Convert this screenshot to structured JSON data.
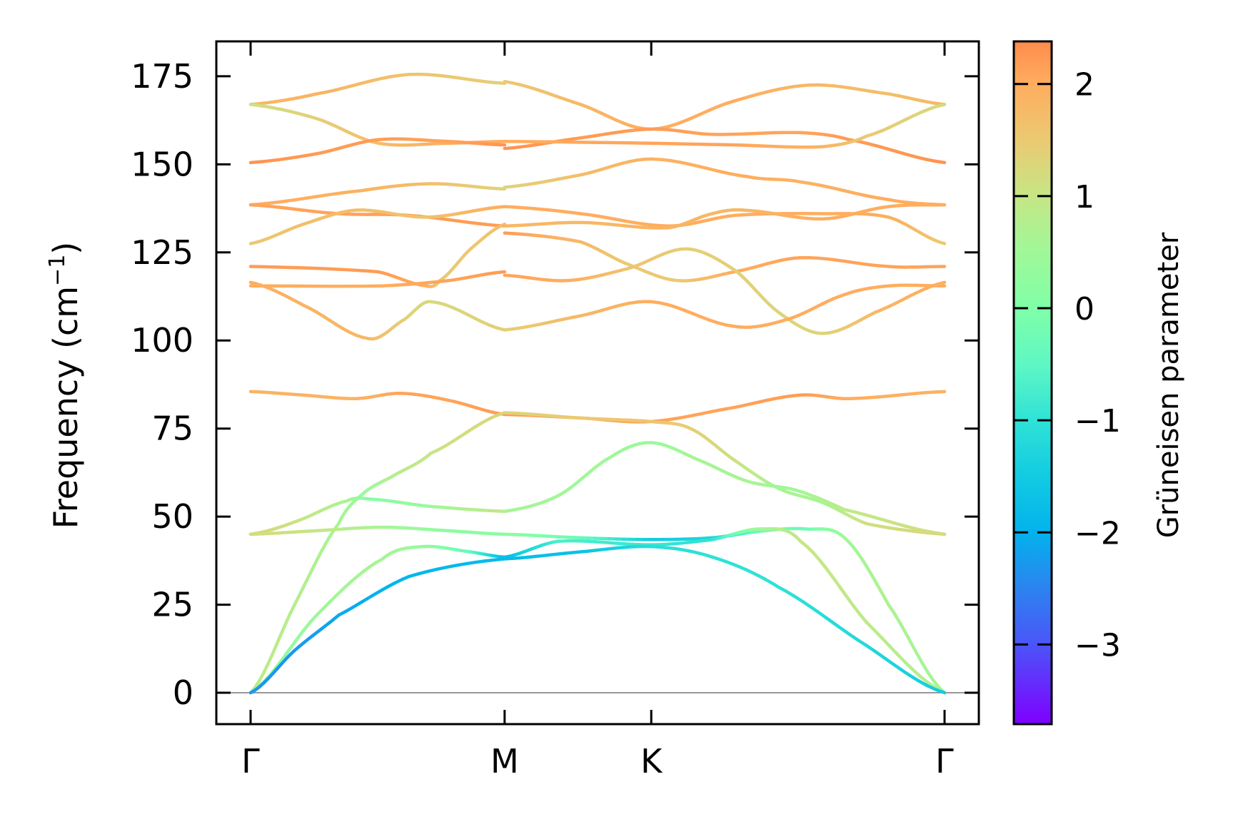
{
  "chart_data": {
    "type": "line",
    "title": "",
    "xlabel": "",
    "ylabel": "Frequency (cm",
    "ylabel_sup": "−1",
    "ylabel_end": ")",
    "ylim": [
      -8.9,
      184.9
    ],
    "yticks": [
      0,
      25,
      50,
      75,
      100,
      125,
      150,
      175
    ],
    "xlim": [
      -0.086,
      1.66
    ],
    "xticks": [
      {
        "x": 0,
        "label": "Γ"
      },
      {
        "x": 0.5774,
        "label": "M"
      },
      {
        "x": 0.9107,
        "label": "K"
      },
      {
        "x": 1.5774,
        "label": "Γ"
      }
    ],
    "zero_line": 0,
    "zero_line_color": "#999999",
    "colorbar": {
      "label": "Grüneisen parameter",
      "clim": [
        -3.71,
        2.38
      ],
      "ticks": [
        {
          "v": 2,
          "label": "2"
        },
        {
          "v": 1,
          "label": "1"
        },
        {
          "v": 0,
          "label": "0"
        },
        {
          "v": -1,
          "label": "−1"
        },
        {
          "v": -2,
          "label": "−2"
        },
        {
          "v": -3,
          "label": "−3"
        }
      ],
      "colormap": [
        [
          -3.71,
          "#7f00ff"
        ],
        [
          -3.0,
          "#4b55f8"
        ],
        [
          -2.5,
          "#2c83f0"
        ],
        [
          -2.0,
          "#03b2ec"
        ],
        [
          -1.5,
          "#12cbe2"
        ],
        [
          -1.0,
          "#2fe2d6"
        ],
        [
          -0.5,
          "#5ff7c4"
        ],
        [
          0.0,
          "#80ffa8"
        ],
        [
          0.5,
          "#a0f898"
        ],
        [
          1.0,
          "#c6e685"
        ],
        [
          1.5,
          "#ebc972"
        ],
        [
          2.0,
          "#ffad5e"
        ],
        [
          2.38,
          "#ff8c4d"
        ]
      ]
    },
    "series": [
      {
        "segment": "Γ-M",
        "points": [
          [
            0,
            167,
            1.8
          ],
          [
            0.15,
            170,
            1.9
          ],
          [
            0.36,
            175.5,
            1.6
          ],
          [
            0.5774,
            173,
            1.4
          ]
        ]
      },
      {
        "segment": "Γ-M",
        "points": [
          [
            0,
            167,
            1.1
          ],
          [
            0.15,
            163,
            1.4
          ],
          [
            0.29,
            156,
            1.7
          ],
          [
            0.45,
            156,
            2.0
          ],
          [
            0.5774,
            156.5,
            2.0
          ]
        ]
      },
      {
        "segment": "Γ-M",
        "points": [
          [
            0,
            150.5,
            2.3
          ],
          [
            0.15,
            153,
            2.2
          ],
          [
            0.29,
            157,
            2.2
          ],
          [
            0.45,
            156.5,
            2.1
          ],
          [
            0.5774,
            155.5,
            2.3
          ]
        ]
      },
      {
        "segment": "Γ-M",
        "points": [
          [
            0,
            138.5,
            2.0
          ],
          [
            0.25,
            142.5,
            1.9
          ],
          [
            0.41,
            144.5,
            1.7
          ],
          [
            0.5774,
            143,
            1.3
          ]
        ]
      },
      {
        "segment": "Γ-M",
        "points": [
          [
            0,
            138.5,
            2.1
          ],
          [
            0.2,
            136,
            2.1
          ],
          [
            0.36,
            135.5,
            2.2
          ],
          [
            0.5774,
            132.5,
            2.2
          ]
        ]
      },
      {
        "segment": "Γ-M",
        "points": [
          [
            0,
            127.5,
            1.5
          ],
          [
            0.12,
            133,
            1.7
          ],
          [
            0.24,
            137,
            1.7
          ],
          [
            0.4,
            135,
            1.6
          ],
          [
            0.5774,
            138,
            2.0
          ]
        ]
      },
      {
        "segment": "Γ-M",
        "points": [
          [
            0,
            121,
            2.2
          ],
          [
            0.29,
            119.5,
            2.2
          ],
          [
            0.4,
            115.5,
            2.0
          ],
          [
            0.43,
            117,
            1.5
          ],
          [
            0.5,
            126,
            1.5
          ],
          [
            0.5774,
            133,
            1.7
          ]
        ]
      },
      {
        "segment": "Γ-M",
        "points": [
          [
            0,
            115.5,
            2.0
          ],
          [
            0.3,
            115.5,
            2.0
          ],
          [
            0.45,
            117,
            2.1
          ],
          [
            0.5774,
            119.5,
            2.2
          ]
        ]
      },
      {
        "segment": "Γ-M",
        "points": [
          [
            0,
            116.5,
            2.0
          ],
          [
            0.12,
            110,
            1.9
          ],
          [
            0.27,
            100.5,
            1.8
          ],
          [
            0.35,
            106,
            1.4
          ],
          [
            0.41,
            111,
            1.2
          ],
          [
            0.5774,
            103,
            1.4
          ]
        ]
      },
      {
        "segment": "Γ-M",
        "points": [
          [
            0,
            85.5,
            1.9
          ],
          [
            0.12,
            84.5,
            1.9
          ],
          [
            0.24,
            83.5,
            1.9
          ],
          [
            0.34,
            85,
            2.1
          ],
          [
            0.45,
            83,
            2.1
          ],
          [
            0.5774,
            79,
            2.2
          ]
        ]
      },
      {
        "segment": "Γ-M",
        "points": [
          [
            0,
            0,
            0.9
          ],
          [
            0.1,
            25,
            0.8
          ],
          [
            0.2,
            48,
            0.6
          ],
          [
            0.26,
            57,
            0.4
          ],
          [
            0.33,
            62,
            0.8
          ],
          [
            0.41,
            68,
            1.0
          ],
          [
            0.5774,
            79.5,
            1.3
          ]
        ]
      },
      {
        "segment": "Γ-M",
        "points": [
          [
            0,
            45,
            1.3
          ],
          [
            0.1,
            48.5,
            1.1
          ],
          [
            0.22,
            54.5,
            0.6
          ],
          [
            0.27,
            55,
            0.1
          ],
          [
            0.4,
            53,
            0.4
          ],
          [
            0.5774,
            51.5,
            1.0
          ]
        ]
      },
      {
        "segment": "Γ-M",
        "points": [
          [
            0,
            45,
            1.2
          ],
          [
            0.15,
            46,
            1.0
          ],
          [
            0.3,
            47,
            0.6
          ],
          [
            0.45,
            46,
            0.2
          ],
          [
            0.5774,
            45,
            0.2
          ]
        ]
      },
      {
        "segment": "Γ-M",
        "points": [
          [
            0,
            0,
            0
          ],
          [
            0.15,
            22,
            0.5
          ],
          [
            0.3,
            38,
            0.6
          ],
          [
            0.39,
            41.5,
            0.3
          ],
          [
            0.5,
            40,
            -0.4
          ],
          [
            0.5774,
            38.5,
            -1.8
          ]
        ]
      },
      {
        "segment": "Γ-M",
        "points": [
          [
            0,
            0,
            -2.3
          ],
          [
            0.1,
            12,
            -2.3
          ],
          [
            0.2,
            22,
            -2.1
          ],
          [
            0.36,
            33,
            -1.9
          ],
          [
            0.5774,
            38,
            -1.8
          ]
        ]
      },
      {
        "segment": "M-K-Γ",
        "points": [
          [
            0.5774,
            173.5,
            1.5
          ],
          [
            0.75,
            167,
            1.8
          ],
          [
            0.9107,
            160,
            2.0
          ],
          [
            1.1,
            168,
            2.0
          ],
          [
            1.271,
            172.5,
            1.8
          ],
          [
            1.45,
            170,
            1.7
          ],
          [
            1.5774,
            167,
            1.8
          ]
        ]
      },
      {
        "segment": "M-K-Γ",
        "points": [
          [
            0.5774,
            154.5,
            2.3
          ],
          [
            0.75,
            157.5,
            2.2
          ],
          [
            0.9107,
            160,
            2.2
          ],
          [
            1.05,
            158.5,
            2.1
          ],
          [
            1.25,
            159,
            2.1
          ],
          [
            1.36,
            157,
            2.2
          ],
          [
            1.5774,
            150.5,
            2.3
          ]
        ]
      },
      {
        "segment": "M-K-Γ",
        "points": [
          [
            0.5774,
            156.5,
            2.0
          ],
          [
            0.9107,
            156,
            2.1
          ],
          [
            1.1,
            155.5,
            2.1
          ],
          [
            1.3,
            155,
            1.9
          ],
          [
            1.4,
            158,
            1.5
          ],
          [
            1.5774,
            167,
            1.2
          ]
        ]
      },
      {
        "segment": "M-K-Γ",
        "points": [
          [
            0.5774,
            143.5,
            1.3
          ],
          [
            0.75,
            147,
            1.7
          ],
          [
            0.9107,
            151.5,
            1.9
          ],
          [
            1.13,
            146.5,
            2.0
          ],
          [
            1.25,
            145,
            1.9
          ],
          [
            1.45,
            140,
            2.0
          ],
          [
            1.5774,
            138.5,
            2.0
          ]
        ]
      },
      {
        "segment": "M-K-Γ",
        "points": [
          [
            0.5774,
            138,
            2.0
          ],
          [
            0.75,
            136,
            2.0
          ],
          [
            0.95,
            132.5,
            2.0
          ],
          [
            1.1,
            135.5,
            2.0
          ],
          [
            1.3,
            136,
            2.0
          ],
          [
            1.45,
            135,
            2.0
          ],
          [
            1.5774,
            127.5,
            1.5
          ]
        ]
      },
      {
        "segment": "M-K-Γ",
        "points": [
          [
            0.5774,
            132.5,
            1.8
          ],
          [
            0.75,
            133.5,
            1.8
          ],
          [
            0.95,
            132,
            1.9
          ],
          [
            1.05,
            136,
            1.8
          ],
          [
            1.12,
            137,
            1.8
          ],
          [
            1.3,
            134.5,
            2.0
          ],
          [
            1.45,
            138,
            2.0
          ],
          [
            1.5774,
            138.5,
            2.0
          ]
        ]
      },
      {
        "segment": "M-K-Γ",
        "points": [
          [
            0.5774,
            130.5,
            2.2
          ],
          [
            0.75,
            128,
            1.8
          ],
          [
            0.85,
            122,
            1.5
          ],
          [
            0.97,
            117,
            1.5
          ],
          [
            1.1,
            119.5,
            2.0
          ],
          [
            1.25,
            123.5,
            2.1
          ],
          [
            1.45,
            121,
            2.1
          ],
          [
            1.5774,
            121,
            2.1
          ]
        ]
      },
      {
        "segment": "M-K-Γ",
        "points": [
          [
            0.5774,
            118.5,
            2.1
          ],
          [
            0.72,
            117,
            2.0
          ],
          [
            0.86,
            120.5,
            1.6
          ],
          [
            0.99,
            126,
            1.4
          ],
          [
            1.1,
            120,
            1.4
          ],
          [
            1.2,
            108,
            1.3
          ],
          [
            1.3,
            102,
            1.3
          ],
          [
            1.42,
            108,
            1.8
          ],
          [
            1.5774,
            116.5,
            2.0
          ]
        ]
      },
      {
        "segment": "M-K-Γ",
        "points": [
          [
            0.5774,
            103,
            1.4
          ],
          [
            0.75,
            107,
            1.8
          ],
          [
            0.9107,
            111,
            2.0
          ],
          [
            1.1,
            104,
            2.0
          ],
          [
            1.22,
            106,
            2.0
          ],
          [
            1.35,
            113,
            2.0
          ],
          [
            1.45,
            115.5,
            2.0
          ],
          [
            1.5774,
            115.5,
            2.0
          ]
        ]
      },
      {
        "segment": "M-K-Γ",
        "points": [
          [
            0.5774,
            79,
            2.2
          ],
          [
            0.75,
            78,
            2.1
          ],
          [
            0.9107,
            77,
            2.1
          ],
          [
            1.1,
            81,
            2.1
          ],
          [
            1.25,
            84.5,
            2.2
          ],
          [
            1.36,
            83.5,
            2.0
          ],
          [
            1.5774,
            85.5,
            1.9
          ]
        ]
      },
      {
        "segment": "M-K-Γ",
        "points": [
          [
            0.5774,
            79.5,
            1.3
          ],
          [
            0.75,
            78,
            1.5
          ],
          [
            0.9107,
            77,
            1.6
          ],
          [
            1.0,
            75,
            1.4
          ],
          [
            1.1,
            66,
            1.1
          ],
          [
            1.2,
            58,
            0.6
          ],
          [
            1.3,
            54,
            0.6
          ],
          [
            1.4,
            48,
            1.1
          ],
          [
            1.5774,
            45,
            1.3
          ]
        ]
      },
      {
        "segment": "M-K-Γ",
        "points": [
          [
            0.5774,
            51.5,
            0.6
          ],
          [
            0.7,
            56,
            0.5
          ],
          [
            0.82,
            67,
            0.5
          ],
          [
            0.9107,
            71,
            0.4
          ],
          [
            1.02,
            66,
            0.6
          ],
          [
            1.13,
            60,
            0.6
          ],
          [
            1.24,
            57.5,
            0.5
          ],
          [
            1.35,
            52,
            0.9
          ],
          [
            1.5774,
            45,
            1.2
          ]
        ]
      },
      {
        "segment": "M-K-Γ",
        "points": [
          [
            0.5774,
            45,
            0.2
          ],
          [
            0.75,
            44,
            -0.3
          ],
          [
            0.9107,
            43.5,
            -1.5
          ],
          [
            1.05,
            44,
            -1.3
          ],
          [
            1.17,
            46,
            -0.2
          ],
          [
            1.26,
            46.5,
            -0.3
          ],
          [
            1.35,
            44,
            0.5
          ],
          [
            1.45,
            25,
            0.7
          ],
          [
            1.5774,
            0,
            0.5
          ]
        ]
      },
      {
        "segment": "M-K-Γ",
        "points": [
          [
            0.5774,
            38.5,
            -1.8
          ],
          [
            0.7,
            43,
            -0.7
          ],
          [
            0.9107,
            42,
            -0.9
          ],
          [
            1.05,
            43.5,
            -1.0
          ],
          [
            1.16,
            46.5,
            0.6
          ],
          [
            1.25,
            43,
            1.0
          ],
          [
            1.4,
            20,
            0.9
          ],
          [
            1.5774,
            0,
            0.7
          ]
        ]
      },
      {
        "segment": "M-K-Γ",
        "points": [
          [
            0.5774,
            38,
            -1.8
          ],
          [
            0.75,
            40,
            -1.7
          ],
          [
            0.9107,
            41.5,
            -1.1
          ],
          [
            1.05,
            38.5,
            -1.0
          ],
          [
            1.2,
            30,
            -1.0
          ],
          [
            1.38,
            15,
            -1.2
          ],
          [
            1.5774,
            0,
            -1.5
          ]
        ]
      }
    ]
  }
}
